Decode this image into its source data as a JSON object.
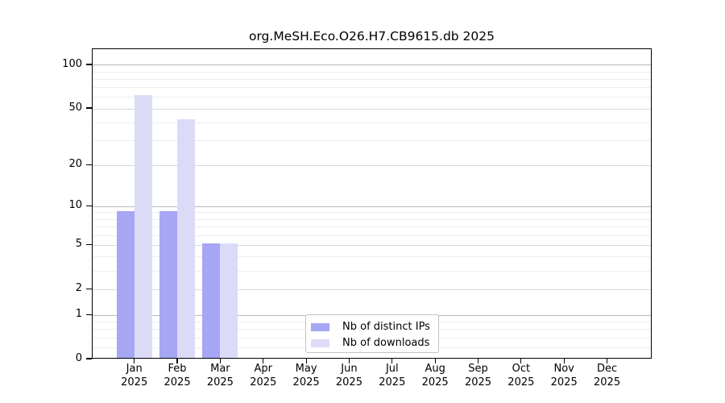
{
  "title": "org.MeSH.Eco.O26.H7.CB9615.db 2025",
  "chart_data": {
    "type": "bar",
    "title": "org.MeSH.Eco.O26.H7.CB9615.db 2025",
    "year_label": "2025",
    "categories": [
      "Jan",
      "Feb",
      "Mar",
      "Apr",
      "May",
      "Jun",
      "Jul",
      "Aug",
      "Sep",
      "Oct",
      "Nov",
      "Dec"
    ],
    "series": [
      {
        "name": "Nb of distinct IPs",
        "color": "#a6a6f5",
        "values": [
          9,
          9,
          5,
          0,
          0,
          0,
          0,
          0,
          0,
          0,
          0,
          0
        ]
      },
      {
        "name": "Nb of downloads",
        "color": "#dbdbf8",
        "values": [
          61,
          41,
          5,
          0,
          0,
          0,
          0,
          0,
          0,
          0,
          0,
          0
        ]
      }
    ],
    "xlabel": "",
    "ylabel": "",
    "y_scale": "log1p",
    "y_ticks": [
      0,
      1,
      2,
      5,
      10,
      20,
      50,
      100
    ],
    "y_mid_ticks": [
      2,
      5,
      20,
      50
    ],
    "y_major_gridlines": [
      1,
      10,
      100
    ],
    "y_minor_gridlines": [
      0.2,
      0.4,
      0.6,
      0.8,
      3,
      4,
      6,
      7,
      8,
      9,
      30,
      40,
      60,
      70,
      80,
      90
    ],
    "ylim": [
      0,
      129
    ],
    "grid": true,
    "legend_position": "lower center"
  },
  "legend": {
    "items": [
      {
        "label": "Nb of distinct IPs",
        "color": "#a6a6f5"
      },
      {
        "label": "Nb of downloads",
        "color": "#dbdbf8"
      }
    ]
  },
  "colors": {
    "bar_distinct_ips": "#a6a6f5",
    "bar_downloads": "#dbdbf8",
    "axis": "#000000",
    "grid_major": "#b9b9b9",
    "grid_mid": "#d9d9d9",
    "grid_minor": "#ededed",
    "legend_border": "#c3c3c3"
  }
}
